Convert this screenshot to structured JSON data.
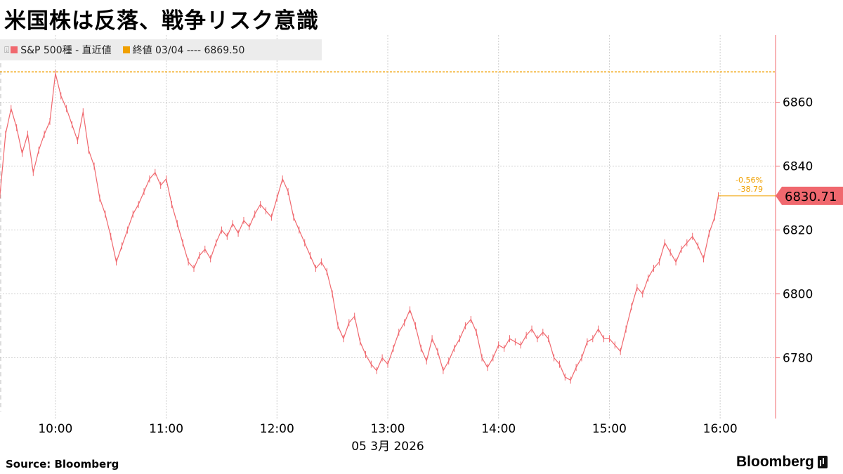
{
  "title": "米国株は反落、戦争リスク意識",
  "legend": {
    "series_label": "S&P 500種 - 直近値",
    "series_color": "#f0686e",
    "ref_label": "終値 03/04 ---- 6869.50",
    "ref_color": "#f0a000"
  },
  "footer": {
    "source": "Source:  Bloomberg",
    "brand": "Bloomberg"
  },
  "chart_data": {
    "type": "line",
    "title": "米国株は反落、戦争リスク意識",
    "xlabel": "05 3月 2026",
    "ylabel": "",
    "x_ticks": [
      "10:00",
      "11:00",
      "12:00",
      "13:00",
      "14:00",
      "15:00",
      "16:00"
    ],
    "y_ticks": [
      6780,
      6800,
      6820,
      6840,
      6860
    ],
    "xlim": [
      "09:30",
      "16:30"
    ],
    "ylim": [
      6761,
      6881
    ],
    "grid": true,
    "legend_position": "top-left",
    "reference_line": {
      "label": "終値 03/04",
      "value": 6869.5
    },
    "last_value": 6830.71,
    "change_percent": "-0.56%",
    "change_points": "-38.79",
    "series": [
      {
        "name": "S&P 500種",
        "points": [
          [
            "09:30",
            6831
          ],
          [
            "09:33",
            6850
          ],
          [
            "09:36",
            6858
          ],
          [
            "09:39",
            6852
          ],
          [
            "09:42",
            6844
          ],
          [
            "09:45",
            6850
          ],
          [
            "09:48",
            6838
          ],
          [
            "09:51",
            6845
          ],
          [
            "09:54",
            6850
          ],
          [
            "09:57",
            6854
          ],
          [
            "10:00",
            6869
          ],
          [
            "10:03",
            6862
          ],
          [
            "10:06",
            6858
          ],
          [
            "10:09",
            6853
          ],
          [
            "10:12",
            6848
          ],
          [
            "10:15",
            6857
          ],
          [
            "10:18",
            6845
          ],
          [
            "10:21",
            6840
          ],
          [
            "10:24",
            6830
          ],
          [
            "10:27",
            6825
          ],
          [
            "10:30",
            6818
          ],
          [
            "10:33",
            6810
          ],
          [
            "10:36",
            6815
          ],
          [
            "10:39",
            6820
          ],
          [
            "10:42",
            6825
          ],
          [
            "10:45",
            6828
          ],
          [
            "10:48",
            6832
          ],
          [
            "10:51",
            6836
          ],
          [
            "10:54",
            6838
          ],
          [
            "10:57",
            6834
          ],
          [
            "11:00",
            6836
          ],
          [
            "11:03",
            6828
          ],
          [
            "11:06",
            6822
          ],
          [
            "11:09",
            6816
          ],
          [
            "11:12",
            6810
          ],
          [
            "11:15",
            6808
          ],
          [
            "11:18",
            6812
          ],
          [
            "11:21",
            6814
          ],
          [
            "11:24",
            6811
          ],
          [
            "11:27",
            6816
          ],
          [
            "11:30",
            6820
          ],
          [
            "11:33",
            6818
          ],
          [
            "11:36",
            6822
          ],
          [
            "11:39",
            6819
          ],
          [
            "11:42",
            6823
          ],
          [
            "11:45",
            6821
          ],
          [
            "11:48",
            6825
          ],
          [
            "11:51",
            6828
          ],
          [
            "11:54",
            6826
          ],
          [
            "11:57",
            6824
          ],
          [
            "12:00",
            6830
          ],
          [
            "12:03",
            6836
          ],
          [
            "12:06",
            6832
          ],
          [
            "12:09",
            6824
          ],
          [
            "12:12",
            6820
          ],
          [
            "12:15",
            6816
          ],
          [
            "12:18",
            6812
          ],
          [
            "12:21",
            6808
          ],
          [
            "12:24",
            6810
          ],
          [
            "12:27",
            6807
          ],
          [
            "12:30",
            6800
          ],
          [
            "12:33",
            6790
          ],
          [
            "12:36",
            6786
          ],
          [
            "12:39",
            6791
          ],
          [
            "12:42",
            6793
          ],
          [
            "12:45",
            6785
          ],
          [
            "12:48",
            6781
          ],
          [
            "12:51",
            6778
          ],
          [
            "12:54",
            6776
          ],
          [
            "12:57",
            6780
          ],
          [
            "13:00",
            6778
          ],
          [
            "13:03",
            6783
          ],
          [
            "13:06",
            6788
          ],
          [
            "13:09",
            6791
          ],
          [
            "13:12",
            6795
          ],
          [
            "13:15",
            6790
          ],
          [
            "13:18",
            6783
          ],
          [
            "13:21",
            6779
          ],
          [
            "13:24",
            6786
          ],
          [
            "13:27",
            6782
          ],
          [
            "13:30",
            6776
          ],
          [
            "13:33",
            6779
          ],
          [
            "13:36",
            6783
          ],
          [
            "13:39",
            6786
          ],
          [
            "13:42",
            6790
          ],
          [
            "13:45",
            6792
          ],
          [
            "13:48",
            6788
          ],
          [
            "13:51",
            6780
          ],
          [
            "13:54",
            6777
          ],
          [
            "13:57",
            6780
          ],
          [
            "14:00",
            6784
          ],
          [
            "14:03",
            6783
          ],
          [
            "14:06",
            6786
          ],
          [
            "14:09",
            6785
          ],
          [
            "14:12",
            6784
          ],
          [
            "14:15",
            6787
          ],
          [
            "14:18",
            6789
          ],
          [
            "14:21",
            6786
          ],
          [
            "14:24",
            6788
          ],
          [
            "14:27",
            6786
          ],
          [
            "14:30",
            6780
          ],
          [
            "14:33",
            6778
          ],
          [
            "14:36",
            6774
          ],
          [
            "14:39",
            6773
          ],
          [
            "14:42",
            6777
          ],
          [
            "14:45",
            6780
          ],
          [
            "14:48",
            6785
          ],
          [
            "14:51",
            6786
          ],
          [
            "14:54",
            6789
          ],
          [
            "14:57",
            6786
          ],
          [
            "15:00",
            6786
          ],
          [
            "15:03",
            6784
          ],
          [
            "15:06",
            6782
          ],
          [
            "15:09",
            6789
          ],
          [
            "15:12",
            6796
          ],
          [
            "15:15",
            6802
          ],
          [
            "15:18",
            6800
          ],
          [
            "15:21",
            6805
          ],
          [
            "15:24",
            6808
          ],
          [
            "15:27",
            6810
          ],
          [
            "15:30",
            6816
          ],
          [
            "15:33",
            6813
          ],
          [
            "15:36",
            6810
          ],
          [
            "15:39",
            6814
          ],
          [
            "15:42",
            6816
          ],
          [
            "15:45",
            6818
          ],
          [
            "15:48",
            6815
          ],
          [
            "15:51",
            6811
          ],
          [
            "15:54",
            6819
          ],
          [
            "15:57",
            6824
          ],
          [
            "15:59",
            6830.71
          ]
        ]
      }
    ]
  }
}
